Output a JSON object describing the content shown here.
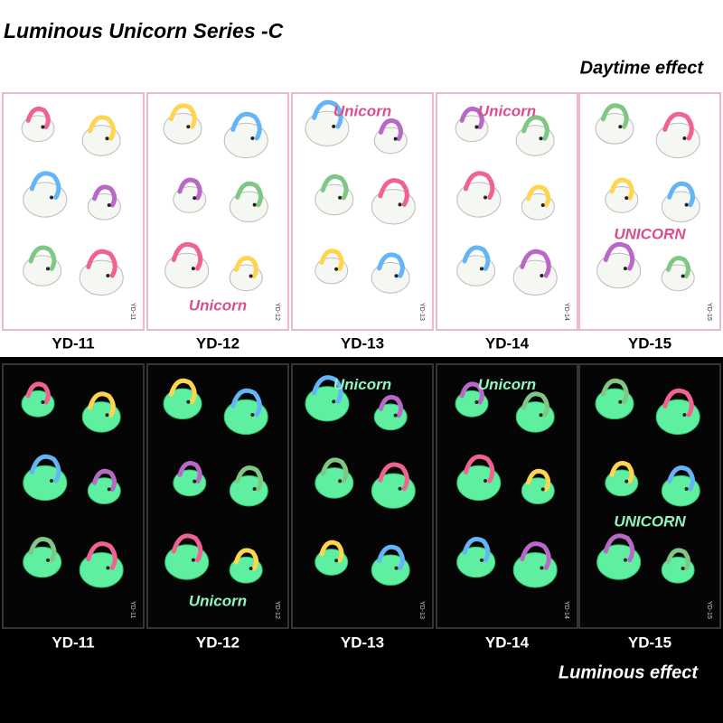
{
  "header": {
    "title": "Luminous Unicorn Series -C",
    "daytime_label": "Daytime effect"
  },
  "daytime_sheets": [
    {
      "code": "YD-11",
      "art_text": null
    },
    {
      "code": "YD-12",
      "art_text": "Unicorn"
    },
    {
      "code": "YD-13",
      "art_text": "Unicorn"
    },
    {
      "code": "YD-14",
      "art_text": "Unicorn"
    },
    {
      "code": "YD-15",
      "art_text": "UNICORN"
    }
  ],
  "luminous_sheets": [
    {
      "code": "YD-11",
      "art_text": null
    },
    {
      "code": "YD-12",
      "art_text": "Unicorn"
    },
    {
      "code": "YD-13",
      "art_text": "Unicorn"
    },
    {
      "code": "YD-14",
      "art_text": "Unicorn"
    },
    {
      "code": "YD-15",
      "art_text": "UNICORN"
    }
  ],
  "footer": {
    "luminous_label": "Luminous effect"
  }
}
